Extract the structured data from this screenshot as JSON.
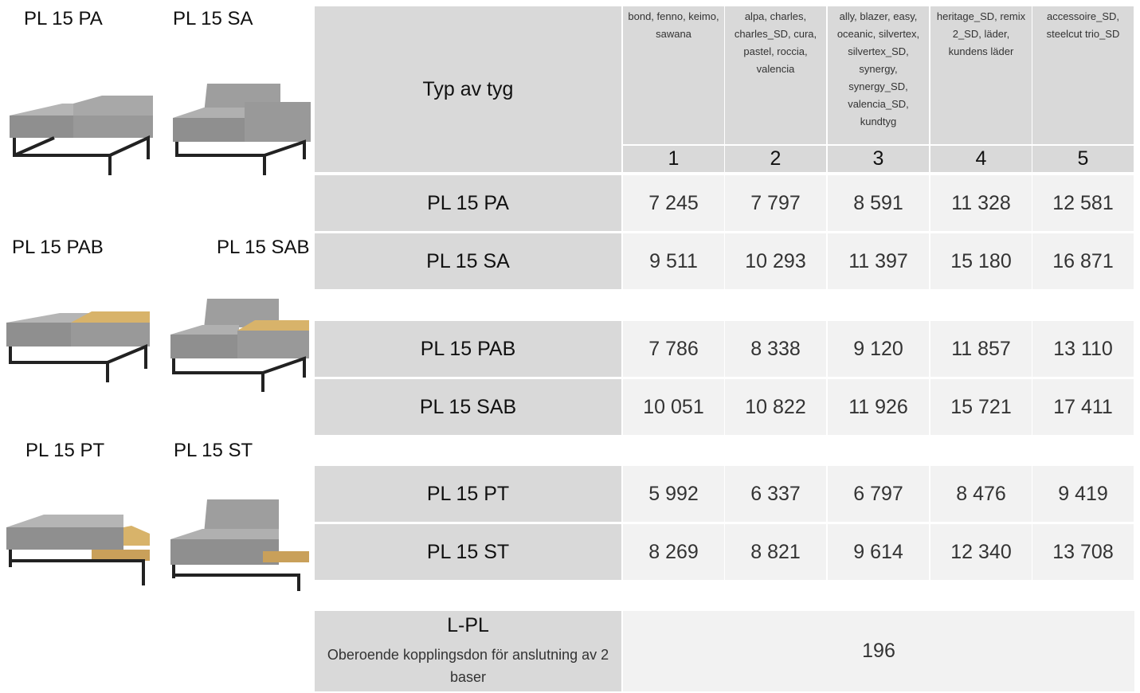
{
  "products": [
    "PL 15 PA",
    "PL 15 SA",
    "PL 15 PAB",
    "PL 15 SAB",
    "PL 15 PT",
    "PL 15 ST"
  ],
  "table": {
    "header_label": "Typ av tyg",
    "fabric_groups": [
      {
        "fabrics": "bond, fenno, keimo, sawana",
        "number": 1
      },
      {
        "fabrics": "alpa, charles, charles_SD, cura, pastel, roccia, valencia",
        "number": 2
      },
      {
        "fabrics": "ally, blazer, easy, oceanic, silvertex, silvertex_SD, synergy, synergy_SD, valencia_SD, kundtyg",
        "number": 3
      },
      {
        "fabrics": "heritage_SD, remix 2_SD, läder, kundens läder",
        "number": 4
      },
      {
        "fabrics": "accessoire_SD, steelcut trio_SD",
        "number": 5
      }
    ],
    "rows": [
      {
        "name": "PL 15 PA",
        "prices": [
          "7 245",
          "7 797",
          "8 591",
          "11 328",
          "12 581"
        ]
      },
      {
        "name": "PL 15 SA",
        "prices": [
          "9 511",
          "10 293",
          "11 397",
          "15 180",
          "16 871"
        ]
      },
      {
        "name": "PL 15 PAB",
        "prices": [
          "7 786",
          "8 338",
          "9 120",
          "11 857",
          "13 110"
        ]
      },
      {
        "name": "PL 15 SAB",
        "prices": [
          "10 051",
          "10 822",
          "11 926",
          "15 721",
          "17 411"
        ]
      },
      {
        "name": "PL 15 PT",
        "prices": [
          "5 992",
          "6 337",
          "6 797",
          "8 476",
          "9 419"
        ]
      },
      {
        "name": "PL 15 ST",
        "prices": [
          "8 269",
          "8 821",
          "9 614",
          "12 340",
          "13 708"
        ]
      }
    ],
    "connector": {
      "name": "L-PL",
      "description": "Oberoende kopplingsdon för anslutning av 2 baser",
      "price": 196
    }
  }
}
